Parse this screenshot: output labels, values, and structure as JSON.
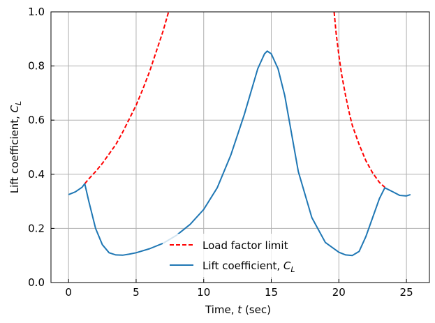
{
  "chart_data": {
    "type": "line",
    "xlabel": {
      "prefix": "Time, ",
      "var": "t",
      "suffix": " (sec)"
    },
    "ylabel": {
      "prefix": "Lift coefficient, ",
      "var": "C",
      "sub": "L"
    },
    "xlim": [
      -1.3,
      26.7
    ],
    "ylim": [
      0,
      1.0
    ],
    "xticks": [
      0,
      5,
      10,
      15,
      20,
      25
    ],
    "yticks": [
      0.0,
      0.2,
      0.4,
      0.6,
      0.8,
      1.0
    ],
    "xtick_labels": [
      "0",
      "5",
      "10",
      "15",
      "20",
      "25"
    ],
    "ytick_labels": [
      "0.0",
      "0.2",
      "0.4",
      "0.6",
      "0.8",
      "1.0"
    ],
    "grid": true,
    "legend_position": "bottom-center",
    "colors": {
      "load_factor_limit": "#ff0000",
      "lift_coefficient": "#1f77b4",
      "grid": "#b0b0b0"
    },
    "series": [
      {
        "name": "Load factor limit",
        "style": "dashed",
        "segments": [
          {
            "x": [
              1.2,
              1.5,
              2.0,
              2.5,
              3.0,
              3.5,
              4.0,
              4.5,
              5.0,
              5.5,
              6.0,
              6.5,
              7.0,
              7.4
            ],
            "y": [
              0.365,
              0.383,
              0.41,
              0.44,
              0.475,
              0.51,
              0.555,
              0.605,
              0.655,
              0.715,
              0.78,
              0.855,
              0.93,
              1.0
            ]
          },
          {
            "x": [
              19.65,
              19.8,
              20.0,
              20.2,
              20.5,
              20.8,
              21.0,
              21.5,
              22.0,
              22.5,
              23.0,
              23.4
            ],
            "y": [
              1.0,
              0.92,
              0.84,
              0.77,
              0.69,
              0.62,
              0.58,
              0.51,
              0.45,
              0.405,
              0.37,
              0.352
            ]
          }
        ]
      },
      {
        "name": "Lift coefficient, ",
        "name_var": "C",
        "name_sub": "L",
        "style": "solid",
        "x": [
          0,
          0.5,
          1.0,
          1.2,
          1.5,
          2.0,
          2.5,
          3.0,
          3.5,
          4.0,
          4.5,
          5.0,
          6.0,
          7.0,
          8.0,
          9.0,
          10.0,
          11.0,
          12.0,
          13.0,
          14.0,
          14.5,
          14.7,
          15.0,
          15.5,
          16.0,
          16.5,
          17.0,
          18.0,
          19.0,
          20.0,
          20.5,
          21.0,
          21.5,
          22.0,
          22.5,
          23.0,
          23.4,
          24.0,
          24.5,
          25.0,
          25.3
        ],
        "y": [
          0.325,
          0.335,
          0.352,
          0.365,
          0.3,
          0.2,
          0.14,
          0.11,
          0.102,
          0.101,
          0.105,
          0.11,
          0.125,
          0.145,
          0.175,
          0.215,
          0.27,
          0.35,
          0.47,
          0.62,
          0.79,
          0.845,
          0.855,
          0.845,
          0.79,
          0.69,
          0.55,
          0.41,
          0.24,
          0.148,
          0.112,
          0.102,
          0.1,
          0.115,
          0.17,
          0.24,
          0.31,
          0.35,
          0.335,
          0.322,
          0.32,
          0.325
        ]
      }
    ]
  }
}
